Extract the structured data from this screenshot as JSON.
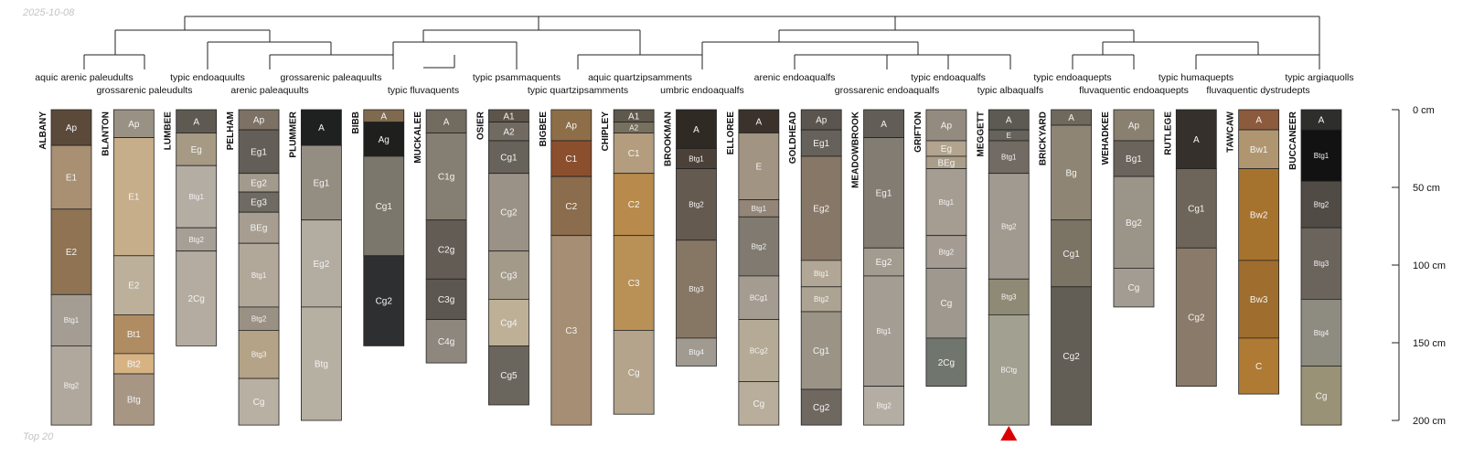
{
  "date_label": "2025-10-08",
  "footer_label": "Top 20",
  "depth_axis": {
    "unit": "cm",
    "max": 200,
    "ticks": [
      0,
      50,
      100,
      150,
      200
    ],
    "tick_labels": [
      "0 cm",
      "50 cm",
      "100 cm",
      "150 cm",
      "200 cm"
    ]
  },
  "marker": {
    "profile": "MEGGETT",
    "color": "#dd0000"
  },
  "classifications": [
    "aquic arenic paleudults",
    "grossarenic paleudults",
    "typic endoaquults",
    "arenic paleaquults",
    "grossarenic paleaquults",
    "typic fluvaquents",
    "typic psammaquents",
    "typic quartzipsamments",
    "aquic quartzipsamments",
    "umbric endoaqualfs",
    "arenic endoaqualfs",
    "grossarenic endoaqualfs",
    "typic endoaqualfs",
    "typic albaqualfs",
    "typic endoaquepts",
    "fluvaquentic endoaquepts",
    "typic humaquepts",
    "fluvaquentic dystrudepts",
    "typic argiaquolls"
  ],
  "profiles": [
    {
      "name": "ALBANY",
      "horizons": [
        {
          "name": "Ap",
          "top": 0,
          "bottom": 23,
          "color": "#5b4a3a"
        },
        {
          "name": "E1",
          "top": 23,
          "bottom": 64,
          "color": "#a99073"
        },
        {
          "name": "E2",
          "top": 64,
          "bottom": 119,
          "color": "#8f7352"
        },
        {
          "name": "Btg1",
          "top": 119,
          "bottom": 152,
          "color": "#a39d93"
        },
        {
          "name": "Btg2",
          "top": 152,
          "bottom": 203,
          "color": "#b0a89c"
        }
      ]
    },
    {
      "name": "BLANTON",
      "horizons": [
        {
          "name": "Ap",
          "top": 0,
          "bottom": 18,
          "color": "#9a9185"
        },
        {
          "name": "E1",
          "top": 18,
          "bottom": 94,
          "color": "#c6ae8a"
        },
        {
          "name": "E2",
          "top": 94,
          "bottom": 132,
          "color": "#bdb09a"
        },
        {
          "name": "Bt1",
          "top": 132,
          "bottom": 157,
          "color": "#b08c62"
        },
        {
          "name": "Bt2",
          "top": 157,
          "bottom": 170,
          "color": "#d7b384"
        },
        {
          "name": "Btg",
          "top": 170,
          "bottom": 203,
          "color": "#a79684"
        }
      ]
    },
    {
      "name": "LUMBEE",
      "horizons": [
        {
          "name": "A",
          "top": 0,
          "bottom": 15,
          "color": "#5e5a52"
        },
        {
          "name": "Eg",
          "top": 15,
          "bottom": 36,
          "color": "#a69a84"
        },
        {
          "name": "Btg1",
          "top": 36,
          "bottom": 76,
          "color": "#b3ada4"
        },
        {
          "name": "Btg2",
          "top": 76,
          "bottom": 91,
          "color": "#a59f96"
        },
        {
          "name": "2Cg",
          "top": 91,
          "bottom": 152,
          "color": "#b4aca0"
        }
      ]
    },
    {
      "name": "PELHAM",
      "horizons": [
        {
          "name": "Ap",
          "top": 0,
          "bottom": 13,
          "color": "#7c7164"
        },
        {
          "name": "Eg1",
          "top": 13,
          "bottom": 41,
          "color": "#635e57"
        },
        {
          "name": "Eg2",
          "top": 41,
          "bottom": 53,
          "color": "#a29a8d"
        },
        {
          "name": "Eg3",
          "top": 53,
          "bottom": 66,
          "color": "#6f6a62"
        },
        {
          "name": "BEg",
          "top": 66,
          "bottom": 86,
          "color": "#a79d90"
        },
        {
          "name": "Btg1",
          "top": 86,
          "bottom": 127,
          "color": "#b2a899"
        },
        {
          "name": "Btg2",
          "top": 127,
          "bottom": 142,
          "color": "#9a9184"
        },
        {
          "name": "Btg3",
          "top": 142,
          "bottom": 173,
          "color": "#b5a387"
        },
        {
          "name": "Cg",
          "top": 173,
          "bottom": 203,
          "color": "#b8b0a2"
        }
      ]
    },
    {
      "name": "PLUMMER",
      "horizons": [
        {
          "name": "A",
          "top": 0,
          "bottom": 23,
          "color": "#1f2120"
        },
        {
          "name": "Eg1",
          "top": 23,
          "bottom": 71,
          "color": "#948e82"
        },
        {
          "name": "Eg2",
          "top": 71,
          "bottom": 127,
          "color": "#b3ada1"
        },
        {
          "name": "Btg",
          "top": 127,
          "bottom": 200,
          "color": "#b6b0a2"
        }
      ]
    },
    {
      "name": "BIBB",
      "horizons": [
        {
          "name": "A",
          "top": 0,
          "bottom": 8,
          "color": "#7f6a50"
        },
        {
          "name": "Ag",
          "top": 8,
          "bottom": 30,
          "color": "#1f1f1d"
        },
        {
          "name": "Cg1",
          "top": 30,
          "bottom": 94,
          "color": "#7c776c"
        },
        {
          "name": "Cg2",
          "top": 94,
          "bottom": 152,
          "color": "#2e2f31"
        }
      ]
    },
    {
      "name": "MUCKALEE",
      "horizons": [
        {
          "name": "A",
          "top": 0,
          "bottom": 15,
          "color": "#716b60"
        },
        {
          "name": "C1g",
          "top": 15,
          "bottom": 71,
          "color": "#847f72"
        },
        {
          "name": "C2g",
          "top": 71,
          "bottom": 109,
          "color": "#635c55"
        },
        {
          "name": "C3g",
          "top": 109,
          "bottom": 135,
          "color": "#5c5750"
        },
        {
          "name": "C4g",
          "top": 135,
          "bottom": 163,
          "color": "#8d877d"
        }
      ]
    },
    {
      "name": "OSIER",
      "horizons": [
        {
          "name": "A1",
          "top": 0,
          "bottom": 8,
          "color": "#5e554a"
        },
        {
          "name": "A2",
          "top": 8,
          "bottom": 20,
          "color": "#716a61"
        },
        {
          "name": "Cg1",
          "top": 20,
          "bottom": 41,
          "color": "#67625a"
        },
        {
          "name": "Cg2",
          "top": 41,
          "bottom": 91,
          "color": "#9a9286"
        },
        {
          "name": "Cg3",
          "top": 91,
          "bottom": 122,
          "color": "#a39a8a"
        },
        {
          "name": "Cg4",
          "top": 122,
          "bottom": 152,
          "color": "#bdb097"
        },
        {
          "name": "Cg5",
          "top": 152,
          "bottom": 190,
          "color": "#6b665d"
        }
      ]
    },
    {
      "name": "BIGBEE",
      "horizons": [
        {
          "name": "Ap",
          "top": 0,
          "bottom": 20,
          "color": "#8d6e49"
        },
        {
          "name": "C1",
          "top": 20,
          "bottom": 43,
          "color": "#8b4f2e"
        },
        {
          "name": "C2",
          "top": 43,
          "bottom": 81,
          "color": "#8b6c4c"
        },
        {
          "name": "C3",
          "top": 81,
          "bottom": 203,
          "color": "#a68e74"
        }
      ]
    },
    {
      "name": "CHIPLEY",
      "horizons": [
        {
          "name": "A1",
          "top": 0,
          "bottom": 8,
          "color": "#5f584d"
        },
        {
          "name": "A2",
          "top": 8,
          "bottom": 15,
          "color": "#77705f"
        },
        {
          "name": "C1",
          "top": 15,
          "bottom": 41,
          "color": "#b49d7e"
        },
        {
          "name": "C2",
          "top": 41,
          "bottom": 81,
          "color": "#b88b4c"
        },
        {
          "name": "C3",
          "top": 81,
          "bottom": 142,
          "color": "#b99157"
        },
        {
          "name": "Cg",
          "top": 142,
          "bottom": 196,
          "color": "#b4a48c"
        }
      ]
    },
    {
      "name": "BROOKMAN",
      "horizons": [
        {
          "name": "A",
          "top": 0,
          "bottom": 25,
          "color": "#302a25"
        },
        {
          "name": "Btg1",
          "top": 25,
          "bottom": 38,
          "color": "#4c4139"
        },
        {
          "name": "Btg2",
          "top": 38,
          "bottom": 84,
          "color": "#645a50"
        },
        {
          "name": "Btg3",
          "top": 84,
          "bottom": 147,
          "color": "#867664"
        },
        {
          "name": "Btg4",
          "top": 147,
          "bottom": 165,
          "color": "#a09a90"
        }
      ]
    },
    {
      "name": "ELLOREE",
      "horizons": [
        {
          "name": "A",
          "top": 0,
          "bottom": 15,
          "color": "#3a322b"
        },
        {
          "name": "E",
          "top": 15,
          "bottom": 58,
          "color": "#a29482"
        },
        {
          "name": "Btg1",
          "top": 58,
          "bottom": 69,
          "color": "#938578"
        },
        {
          "name": "Btg2",
          "top": 69,
          "bottom": 107,
          "color": "#817a70"
        },
        {
          "name": "BCg1",
          "top": 107,
          "bottom": 135,
          "color": "#a49c91"
        },
        {
          "name": "BCg2",
          "top": 135,
          "bottom": 175,
          "color": "#b5aa95"
        },
        {
          "name": "Cg",
          "top": 175,
          "bottom": 203,
          "color": "#b8ae9b"
        }
      ]
    },
    {
      "name": "GOLDHEAD",
      "horizons": [
        {
          "name": "Ap",
          "top": 0,
          "bottom": 13,
          "color": "#5a554e"
        },
        {
          "name": "Eg1",
          "top": 13,
          "bottom": 30,
          "color": "#66615a"
        },
        {
          "name": "Eg2",
          "top": 30,
          "bottom": 97,
          "color": "#877767"
        },
        {
          "name": "Btg1",
          "top": 97,
          "bottom": 114,
          "color": "#b2a796"
        },
        {
          "name": "Btg2",
          "top": 114,
          "bottom": 130,
          "color": "#ada393"
        },
        {
          "name": "Cg1",
          "top": 130,
          "bottom": 180,
          "color": "#9a9386"
        },
        {
          "name": "Cg2",
          "top": 180,
          "bottom": 203,
          "color": "#6e6861"
        }
      ]
    },
    {
      "name": "MEADOWBROOK",
      "horizons": [
        {
          "name": "A",
          "top": 0,
          "bottom": 18,
          "color": "#625d56"
        },
        {
          "name": "Eg1",
          "top": 18,
          "bottom": 89,
          "color": "#827c73"
        },
        {
          "name": "Eg2",
          "top": 89,
          "bottom": 107,
          "color": "#a29b90"
        },
        {
          "name": "Btg1",
          "top": 107,
          "bottom": 178,
          "color": "#a39d93"
        },
        {
          "name": "Btg2",
          "top": 178,
          "bottom": 203,
          "color": "#b3ada4"
        }
      ]
    },
    {
      "name": "GRIFTON",
      "horizons": [
        {
          "name": "Ap",
          "top": 0,
          "bottom": 20,
          "color": "#948b80"
        },
        {
          "name": "Eg",
          "top": 20,
          "bottom": 30,
          "color": "#b2a48e"
        },
        {
          "name": "BEg",
          "top": 30,
          "bottom": 38,
          "color": "#ab9e88"
        },
        {
          "name": "Btg1",
          "top": 38,
          "bottom": 81,
          "color": "#a59c92"
        },
        {
          "name": "Btg2",
          "top": 81,
          "bottom": 102,
          "color": "#a49c92"
        },
        {
          "name": "Cg",
          "top": 102,
          "bottom": 147,
          "color": "#9e988f"
        },
        {
          "name": "2Cg",
          "top": 147,
          "bottom": 178,
          "color": "#70766e"
        }
      ]
    },
    {
      "name": "MEGGETT",
      "horizons": [
        {
          "name": "A",
          "top": 0,
          "bottom": 13,
          "color": "#5d5a54"
        },
        {
          "name": "E",
          "top": 13,
          "bottom": 20,
          "color": "#67625b"
        },
        {
          "name": "Btg1",
          "top": 20,
          "bottom": 41,
          "color": "#716b64"
        },
        {
          "name": "Btg2",
          "top": 41,
          "bottom": 109,
          "color": "#a09a90"
        },
        {
          "name": "Btg3",
          "top": 109,
          "bottom": 132,
          "color": "#8e8a75"
        },
        {
          "name": "BCtg",
          "top": 132,
          "bottom": 203,
          "color": "#a2a091"
        }
      ]
    },
    {
      "name": "BRICKYARD",
      "horizons": [
        {
          "name": "A",
          "top": 0,
          "bottom": 10,
          "color": "#6e685d"
        },
        {
          "name": "Bg",
          "top": 10,
          "bottom": 71,
          "color": "#8f8574"
        },
        {
          "name": "Cg1",
          "top": 71,
          "bottom": 114,
          "color": "#7b7465"
        },
        {
          "name": "Cg2",
          "top": 114,
          "bottom": 203,
          "color": "#625e55"
        }
      ]
    },
    {
      "name": "WEHADKEE",
      "horizons": [
        {
          "name": "Ap",
          "top": 0,
          "bottom": 20,
          "color": "#8a8070"
        },
        {
          "name": "Bg1",
          "top": 20,
          "bottom": 43,
          "color": "#6a645c"
        },
        {
          "name": "Bg2",
          "top": 43,
          "bottom": 102,
          "color": "#9a9489"
        },
        {
          "name": "Cg",
          "top": 102,
          "bottom": 127,
          "color": "#a29c92"
        }
      ]
    },
    {
      "name": "RUTLEGE",
      "horizons": [
        {
          "name": "A",
          "top": 0,
          "bottom": 38,
          "color": "#35302b"
        },
        {
          "name": "Cg1",
          "top": 38,
          "bottom": 89,
          "color": "#6d645a"
        },
        {
          "name": "Cg2",
          "top": 89,
          "bottom": 178,
          "color": "#8a7a6a"
        }
      ]
    },
    {
      "name": "TAWCAW",
      "horizons": [
        {
          "name": "A",
          "top": 0,
          "bottom": 13,
          "color": "#8c5a3c"
        },
        {
          "name": "Bw1",
          "top": 13,
          "bottom": 38,
          "color": "#b09670"
        },
        {
          "name": "Bw2",
          "top": 38,
          "bottom": 97,
          "color": "#a6732e"
        },
        {
          "name": "Bw3",
          "top": 97,
          "bottom": 147,
          "color": "#9f6d2d"
        },
        {
          "name": "C",
          "top": 147,
          "bottom": 183,
          "color": "#af7a33"
        }
      ]
    },
    {
      "name": "BUCCANEER",
      "horizons": [
        {
          "name": "A",
          "top": 0,
          "bottom": 13,
          "color": "#2e2e2c"
        },
        {
          "name": "Btg1",
          "top": 13,
          "bottom": 46,
          "color": "#121212"
        },
        {
          "name": "Btg2",
          "top": 46,
          "bottom": 76,
          "color": "#514b45"
        },
        {
          "name": "Btg3",
          "top": 76,
          "bottom": 122,
          "color": "#6b645d"
        },
        {
          "name": "Btg4",
          "top": 122,
          "bottom": 165,
          "color": "#8e8b80"
        },
        {
          "name": "Cg",
          "top": 165,
          "bottom": 203,
          "color": "#999276"
        }
      ]
    }
  ]
}
